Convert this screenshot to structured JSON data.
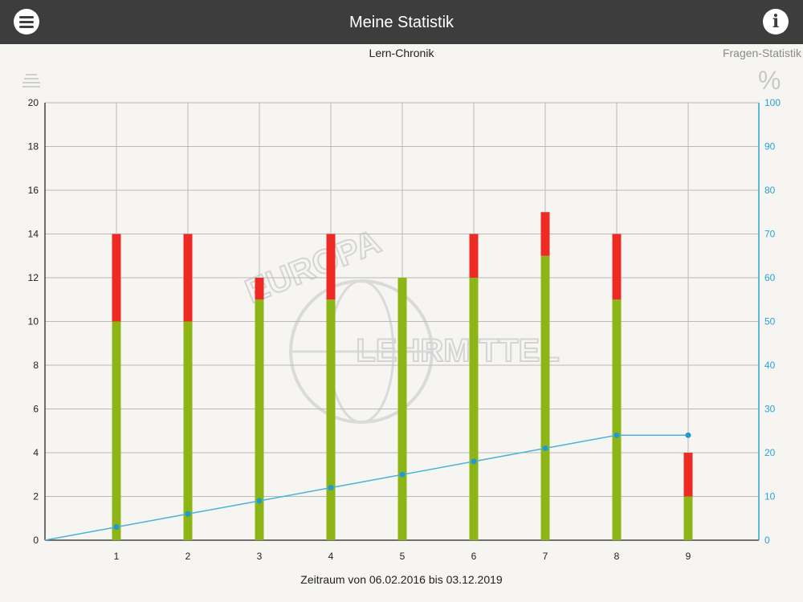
{
  "header": {
    "title": "Meine Statistik",
    "menu_icon": "hamburger-menu-icon",
    "info_icon": "info-icon",
    "background": "#3d3d3d"
  },
  "tabs": {
    "chronik_label": "Lern-Chronik",
    "fragen_label": "Fragen-Statistik",
    "list_icon": "list-icon",
    "percent_icon": "percent-icon",
    "percent_glyph": "%"
  },
  "watermark": {
    "top_text": "EUROPA",
    "bottom_text": "LEHRMITTEL"
  },
  "chart_data": {
    "type": "bar",
    "stacked": true,
    "xlabel": "Zeitraum von 06.02.2016 bis 03.12.2019",
    "categories": [
      "1",
      "2",
      "3",
      "4",
      "5",
      "6",
      "7",
      "8",
      "9"
    ],
    "ylim": [
      0,
      20
    ],
    "yticks": [
      0,
      2,
      4,
      6,
      8,
      10,
      12,
      14,
      16,
      18,
      20
    ],
    "y2lim": [
      0,
      100
    ],
    "y2ticks": [
      0,
      10,
      20,
      30,
      40,
      50,
      60,
      70,
      80,
      90,
      100
    ],
    "grid": true,
    "series": [
      {
        "color": "#8db516",
        "values": [
          10,
          10,
          11,
          11,
          12,
          12,
          13,
          11,
          2
        ]
      },
      {
        "color": "#ee2a24",
        "values": [
          4,
          4,
          1,
          3,
          0,
          2,
          2,
          3,
          2
        ]
      }
    ],
    "line": {
      "axis": "right",
      "color": "#4db2d9",
      "start": [
        0,
        0
      ],
      "x": [
        1,
        2,
        3,
        4,
        5,
        6,
        7,
        8,
        9
      ],
      "values": [
        3,
        6,
        9,
        12,
        15,
        18,
        21,
        24,
        24
      ]
    }
  }
}
